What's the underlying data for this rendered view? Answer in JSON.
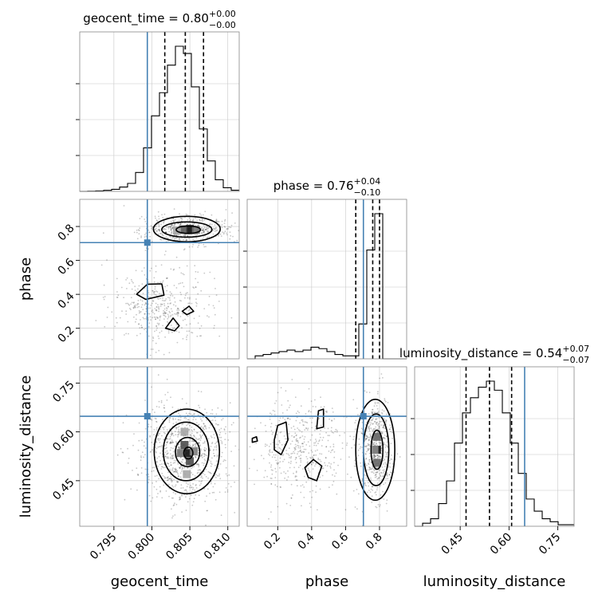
{
  "chart_data": {
    "type": "corner",
    "grid": true,
    "truth_color": "#4682b4",
    "parameters": [
      {
        "name": "geocent_time",
        "axis_label": "geocent_time",
        "range": [
          0.7905,
          0.8115
        ],
        "ticks": [
          "0.795",
          "0.800",
          "0.805",
          "0.810"
        ],
        "tick_values": [
          0.795,
          0.8,
          0.805,
          0.81
        ],
        "truth": 0.7994,
        "quantiles": [
          0.8017,
          0.8044,
          0.8068
        ],
        "title": {
          "base": "geocent_time = 0.80",
          "sup": "+0.00",
          "sub": "−0.00"
        },
        "hist_edges": [
          0.7905,
          0.79155,
          0.7926,
          0.79365,
          0.7947,
          0.79575,
          0.7968,
          0.79785,
          0.7989,
          0.79995,
          0.801,
          0.80205,
          0.8031,
          0.80415,
          0.8052,
          0.80625,
          0.8073,
          0.80835,
          0.8094,
          0.81045,
          0.8115
        ],
        "hist_counts": [
          0,
          1,
          3,
          7,
          14,
          30,
          55,
          130,
          300,
          520,
          680,
          870,
          1000,
          950,
          720,
          430,
          210,
          80,
          25,
          8
        ]
      },
      {
        "name": "phase",
        "axis_label": "phase",
        "range": [
          0.02,
          0.96
        ],
        "ticks": [
          "0.2",
          "0.4",
          "0.6",
          "0.8"
        ],
        "tick_values": [
          0.2,
          0.4,
          0.6,
          0.8
        ],
        "truth": 0.705,
        "quantiles": [
          0.66,
          0.76,
          0.8
        ],
        "title": {
          "base": "phase = 0.76",
          "sup": "+0.04",
          "sub": "−0.10"
        },
        "hist_edges": [
          0.02,
          0.067,
          0.114,
          0.161,
          0.208,
          0.255,
          0.302,
          0.349,
          0.396,
          0.443,
          0.49,
          0.537,
          0.584,
          0.631,
          0.678,
          0.725,
          0.772,
          0.819,
          0.866,
          0.913,
          0.96
        ],
        "hist_counts": [
          0,
          2,
          3,
          4,
          5,
          6,
          5,
          6,
          8,
          7,
          5,
          3,
          2,
          2,
          24,
          75,
          100,
          0,
          0,
          0
        ]
      },
      {
        "name": "luminosity_distance",
        "axis_label": "luminosity_distance",
        "range": [
          0.31,
          0.8
        ],
        "ticks": [
          "0.45",
          "0.60",
          "0.75"
        ],
        "tick_values": [
          0.45,
          0.6,
          0.75
        ],
        "truth": 0.648,
        "quantiles": [
          0.468,
          0.54,
          0.608
        ],
        "title": {
          "base": "luminosity_distance = 0.54",
          "sup": "+0.07",
          "sub": "−0.07"
        },
        "hist_edges": [
          0.31,
          0.3345,
          0.359,
          0.3835,
          0.408,
          0.4325,
          0.457,
          0.4815,
          0.506,
          0.5305,
          0.555,
          0.5795,
          0.604,
          0.6285,
          0.653,
          0.6775,
          0.702,
          0.7265,
          0.751,
          0.7755,
          0.8
        ],
        "hist_counts": [
          0,
          2,
          5,
          15,
          30,
          55,
          75,
          85,
          92,
          96,
          90,
          75,
          55,
          35,
          18,
          10,
          5,
          3,
          1,
          1
        ]
      }
    ],
    "pair_plots": [
      {
        "x_param": "geocent_time",
        "y_param": "phase",
        "scatter_clusters": [
          {
            "cx": 0.8046,
            "cy": 0.78,
            "sx": 0.0028,
            "sy": 0.045,
            "n": 520
          },
          {
            "cx": 0.8012,
            "cy": 0.33,
            "sx": 0.0032,
            "sy": 0.12,
            "n": 420
          }
        ],
        "density_peaks": [
          {
            "x": 0.805,
            "y": 0.785,
            "level": 0.95
          },
          {
            "x": 0.8041,
            "y": 0.783,
            "level": 0.65
          },
          {
            "x": 0.8058,
            "y": 0.78,
            "level": 0.55
          },
          {
            "x": 0.8033,
            "y": 0.776,
            "level": 0.35
          }
        ],
        "contours": [
          {
            "shape": "ellipse",
            "cx": 0.8046,
            "cy": 0.785,
            "rx": 0.0044,
            "ry": 0.075
          },
          {
            "shape": "ellipse",
            "cx": 0.8046,
            "cy": 0.782,
            "rx": 0.0033,
            "ry": 0.045
          },
          {
            "shape": "ellipse",
            "cx": 0.8048,
            "cy": 0.781,
            "rx": 0.0016,
            "ry": 0.022
          },
          {
            "shape": "polygon",
            "points": [
              [
                0.798,
                0.4
              ],
              [
                0.7994,
                0.46
              ],
              [
                0.8013,
                0.462
              ],
              [
                0.8016,
                0.395
              ],
              [
                0.7992,
                0.37
              ]
            ]
          },
          {
            "shape": "polygon",
            "points": [
              [
                0.8018,
                0.2
              ],
              [
                0.8028,
                0.26
              ],
              [
                0.8036,
                0.215
              ],
              [
                0.803,
                0.185
              ]
            ]
          },
          {
            "shape": "polygon",
            "points": [
              [
                0.804,
                0.3
              ],
              [
                0.8049,
                0.33
              ],
              [
                0.8055,
                0.3
              ],
              [
                0.8046,
                0.28
              ]
            ]
          }
        ]
      },
      {
        "x_param": "geocent_time",
        "y_param": "luminosity_distance",
        "scatter_clusters": [
          {
            "cx": 0.8044,
            "cy": 0.54,
            "sx": 0.003,
            "sy": 0.075,
            "n": 950
          }
        ],
        "density_peaks": [
          {
            "x": 0.8047,
            "y": 0.535,
            "level": 0.95
          },
          {
            "x": 0.8043,
            "y": 0.56,
            "level": 0.7
          },
          {
            "x": 0.805,
            "y": 0.51,
            "level": 0.7
          },
          {
            "x": 0.8038,
            "y": 0.535,
            "level": 0.55
          },
          {
            "x": 0.8055,
            "y": 0.54,
            "level": 0.5
          },
          {
            "x": 0.8043,
            "y": 0.6,
            "level": 0.35
          },
          {
            "x": 0.8046,
            "y": 0.47,
            "level": 0.35
          }
        ],
        "contours": [
          {
            "shape": "ellipse",
            "cx": 0.8046,
            "cy": 0.54,
            "rx": 0.0043,
            "ry": 0.13
          },
          {
            "shape": "ellipse",
            "cx": 0.8045,
            "cy": 0.54,
            "rx": 0.003,
            "ry": 0.09
          },
          {
            "shape": "ellipse",
            "cx": 0.8047,
            "cy": 0.538,
            "rx": 0.0016,
            "ry": 0.045
          },
          {
            "shape": "ellipse",
            "cx": 0.8048,
            "cy": 0.535,
            "rx": 0.0006,
            "ry": 0.018
          }
        ]
      },
      {
        "x_param": "phase",
        "y_param": "luminosity_distance",
        "scatter_clusters": [
          {
            "cx": 0.78,
            "cy": 0.545,
            "sx": 0.05,
            "sy": 0.075,
            "n": 600
          },
          {
            "cx": 0.33,
            "cy": 0.55,
            "sx": 0.14,
            "sy": 0.08,
            "n": 450
          }
        ],
        "density_peaks": [
          {
            "x": 0.785,
            "y": 0.545,
            "level": 0.95
          },
          {
            "x": 0.785,
            "y": 0.585,
            "level": 0.6
          },
          {
            "x": 0.785,
            "y": 0.505,
            "level": 0.6
          },
          {
            "x": 0.77,
            "y": 0.545,
            "level": 0.45
          }
        ],
        "contours": [
          {
            "shape": "ellipse",
            "cx": 0.775,
            "cy": 0.545,
            "rx": 0.115,
            "ry": 0.155
          },
          {
            "shape": "ellipse",
            "cx": 0.78,
            "cy": 0.545,
            "rx": 0.075,
            "ry": 0.11
          },
          {
            "shape": "ellipse",
            "cx": 0.785,
            "cy": 0.545,
            "rx": 0.035,
            "ry": 0.06
          },
          {
            "shape": "polygon",
            "points": [
              [
                0.18,
                0.575
              ],
              [
                0.2,
                0.62
              ],
              [
                0.25,
                0.63
              ],
              [
                0.26,
                0.575
              ],
              [
                0.22,
                0.53
              ],
              [
                0.18,
                0.545
              ]
            ]
          },
          {
            "shape": "polygon",
            "points": [
              [
                0.43,
                0.61
              ],
              [
                0.44,
                0.665
              ],
              [
                0.47,
                0.67
              ],
              [
                0.47,
                0.615
              ]
            ]
          },
          {
            "shape": "polygon",
            "points": [
              [
                0.36,
                0.49
              ],
              [
                0.41,
                0.515
              ],
              [
                0.46,
                0.495
              ],
              [
                0.43,
                0.45
              ],
              [
                0.38,
                0.46
              ]
            ]
          },
          {
            "shape": "polygon",
            "points": [
              [
                0.05,
                0.58
              ],
              [
                0.075,
                0.585
              ],
              [
                0.08,
                0.572
              ],
              [
                0.05,
                0.568
              ]
            ]
          }
        ]
      }
    ]
  }
}
